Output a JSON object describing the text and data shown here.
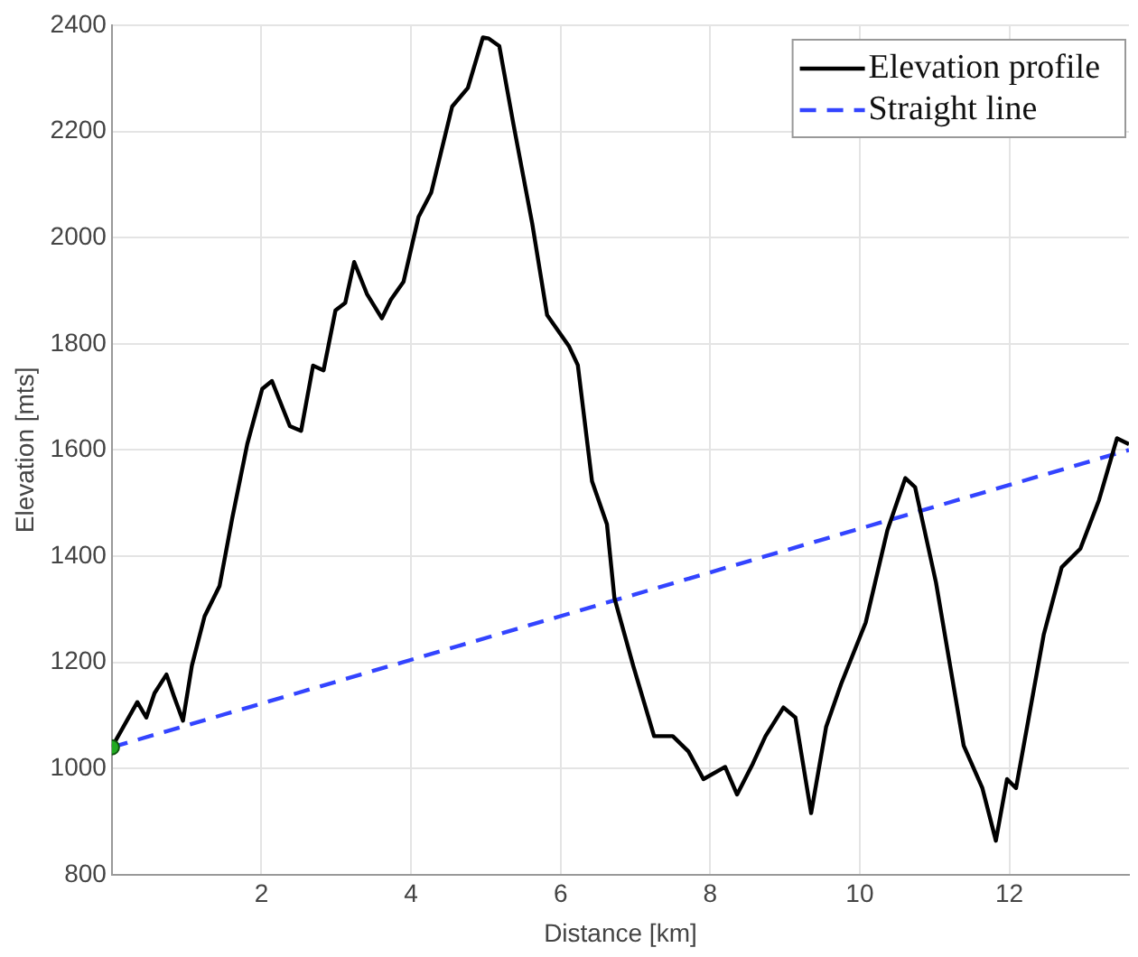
{
  "chart_data": {
    "type": "line",
    "xlabel": "Distance [km]",
    "ylabel": "Elevation [mts]",
    "xlim": [
      0,
      13.6
    ],
    "xticks": [
      2,
      4,
      6,
      8,
      10,
      12
    ],
    "ylim": [
      800,
      2400
    ],
    "yticks": [
      800,
      1000,
      1200,
      1400,
      1600,
      1800,
      2000,
      2200,
      2400
    ],
    "grid": true,
    "legend": "top right",
    "series": [
      {
        "name": "Elevation profile",
        "type": "line",
        "color": "#000000",
        "line_style": "solid",
        "x": [
          0,
          0.34,
          0.46,
          0.57,
          0.73,
          0.83,
          0.95,
          1.07,
          1.24,
          1.44,
          1.61,
          1.81,
          2.01,
          2.14,
          2.38,
          2.53,
          2.69,
          2.83,
          2.99,
          3.12,
          3.24,
          3.41,
          3.61,
          3.73,
          3.9,
          4.1,
          4.27,
          4.55,
          4.76,
          4.96,
          5.04,
          5.18,
          5.37,
          5.62,
          5.82,
          6.11,
          6.23,
          6.42,
          6.62,
          6.72,
          6.97,
          7.25,
          7.5,
          7.71,
          7.91,
          8.2,
          8.36,
          8.57,
          8.74,
          8.98,
          9.14,
          9.35,
          9.55,
          9.75,
          10.08,
          10.37,
          10.61,
          10.74,
          11.02,
          11.39,
          11.64,
          11.82,
          11.97,
          12.09,
          12.46,
          12.7,
          12.95,
          13.2,
          13.44,
          13.6
        ],
        "values": [
          1040,
          1125,
          1096,
          1142,
          1177,
          1136,
          1090,
          1194,
          1287,
          1344,
          1472,
          1611,
          1715,
          1730,
          1645,
          1636,
          1759,
          1750,
          1863,
          1877,
          1954,
          1894,
          1848,
          1883,
          1917,
          2039,
          2085,
          2247,
          2282,
          2377,
          2375,
          2361,
          2213,
          2027,
          1854,
          1796,
          1760,
          1541,
          1460,
          1321,
          1194,
          1061,
          1061,
          1032,
          980,
          1003,
          951,
          1009,
          1061,
          1115,
          1096,
          916,
          1078,
          1159,
          1275,
          1449,
          1547,
          1530,
          1350,
          1043,
          963,
          864,
          980,
          963,
          1252,
          1379,
          1414,
          1506,
          1622,
          1611
        ]
      },
      {
        "name": "Straight line",
        "type": "line",
        "color": "#3344ff",
        "line_style": "dashed",
        "x": [
          0,
          13.6
        ],
        "values": [
          1040,
          1600
        ]
      },
      {
        "type": "scatter",
        "color": "#22aa22",
        "marker": "circle",
        "x": [
          0
        ],
        "values": [
          1040
        ]
      }
    ]
  }
}
